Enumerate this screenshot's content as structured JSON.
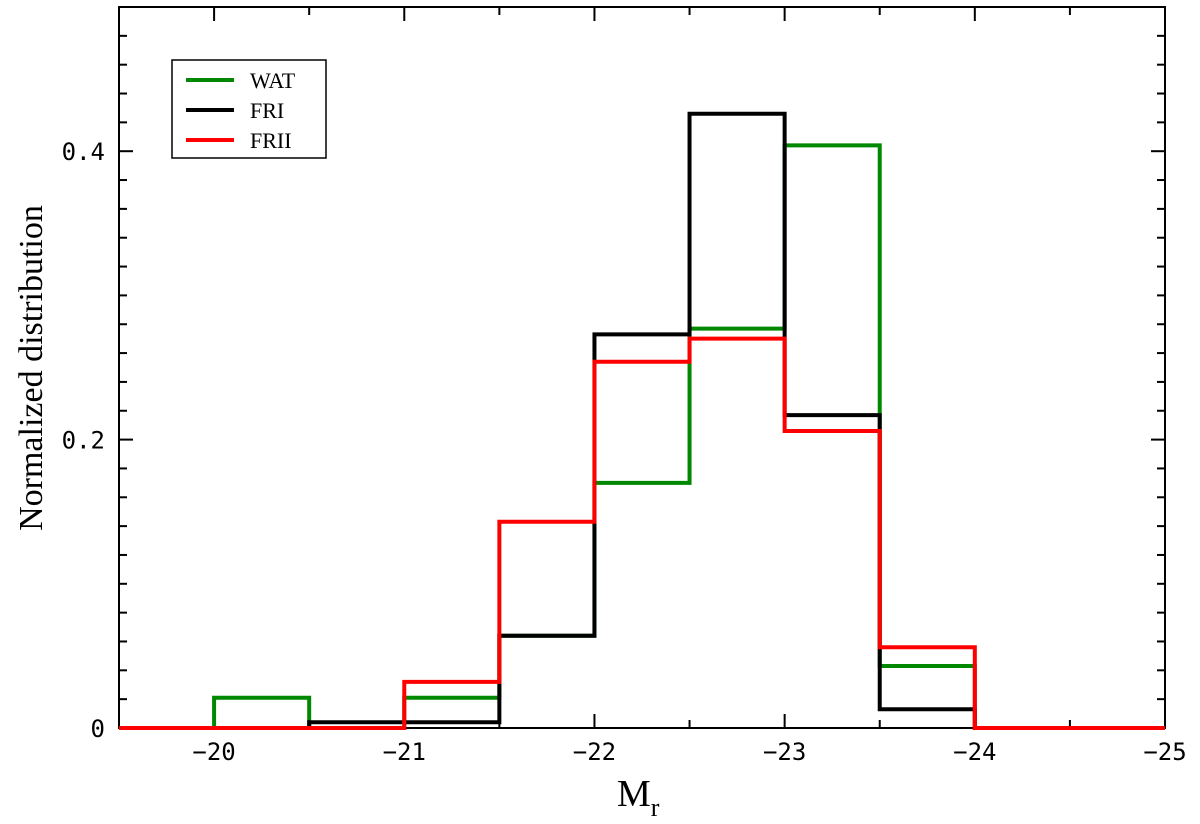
{
  "chart_data": {
    "type": "histogram-step",
    "xlabel": "M",
    "xlabel_subscript": "r",
    "ylabel": "Normalized distribution",
    "xlim": [
      -19.5,
      -25
    ],
    "ylim": [
      0,
      0.5
    ],
    "x_ticks": [
      -20,
      -21,
      -22,
      -23,
      -24,
      -25
    ],
    "x_tick_labels": [
      "−20",
      "−21",
      "−22",
      "−23",
      "−24",
      "−25"
    ],
    "y_ticks": [
      0,
      0.2,
      0.4
    ],
    "y_tick_labels": [
      "0",
      "0.2",
      "0.4"
    ],
    "bin_edges": [
      -19.5,
      -20.0,
      -20.5,
      -21.0,
      -21.5,
      -22.0,
      -22.5,
      -23.0,
      -23.5,
      -24.0,
      -24.5,
      -25.0
    ],
    "legend_position": "top-left",
    "grid": false,
    "series": [
      {
        "name": "WAT",
        "color": "#008800",
        "values": [
          0,
          0.021,
          0,
          0.021,
          0.064,
          0.17,
          0.277,
          0.404,
          0.043,
          0,
          0
        ]
      },
      {
        "name": "FRI",
        "color": "#000000",
        "values": [
          0,
          0,
          0.004,
          0.004,
          0.064,
          0.273,
          0.426,
          0.217,
          0.013,
          0,
          0
        ]
      },
      {
        "name": "FRII",
        "color": "#ff0000",
        "values": [
          0,
          0,
          0,
          0.032,
          0.143,
          0.254,
          0.27,
          0.206,
          0.056,
          0,
          0
        ]
      }
    ]
  }
}
